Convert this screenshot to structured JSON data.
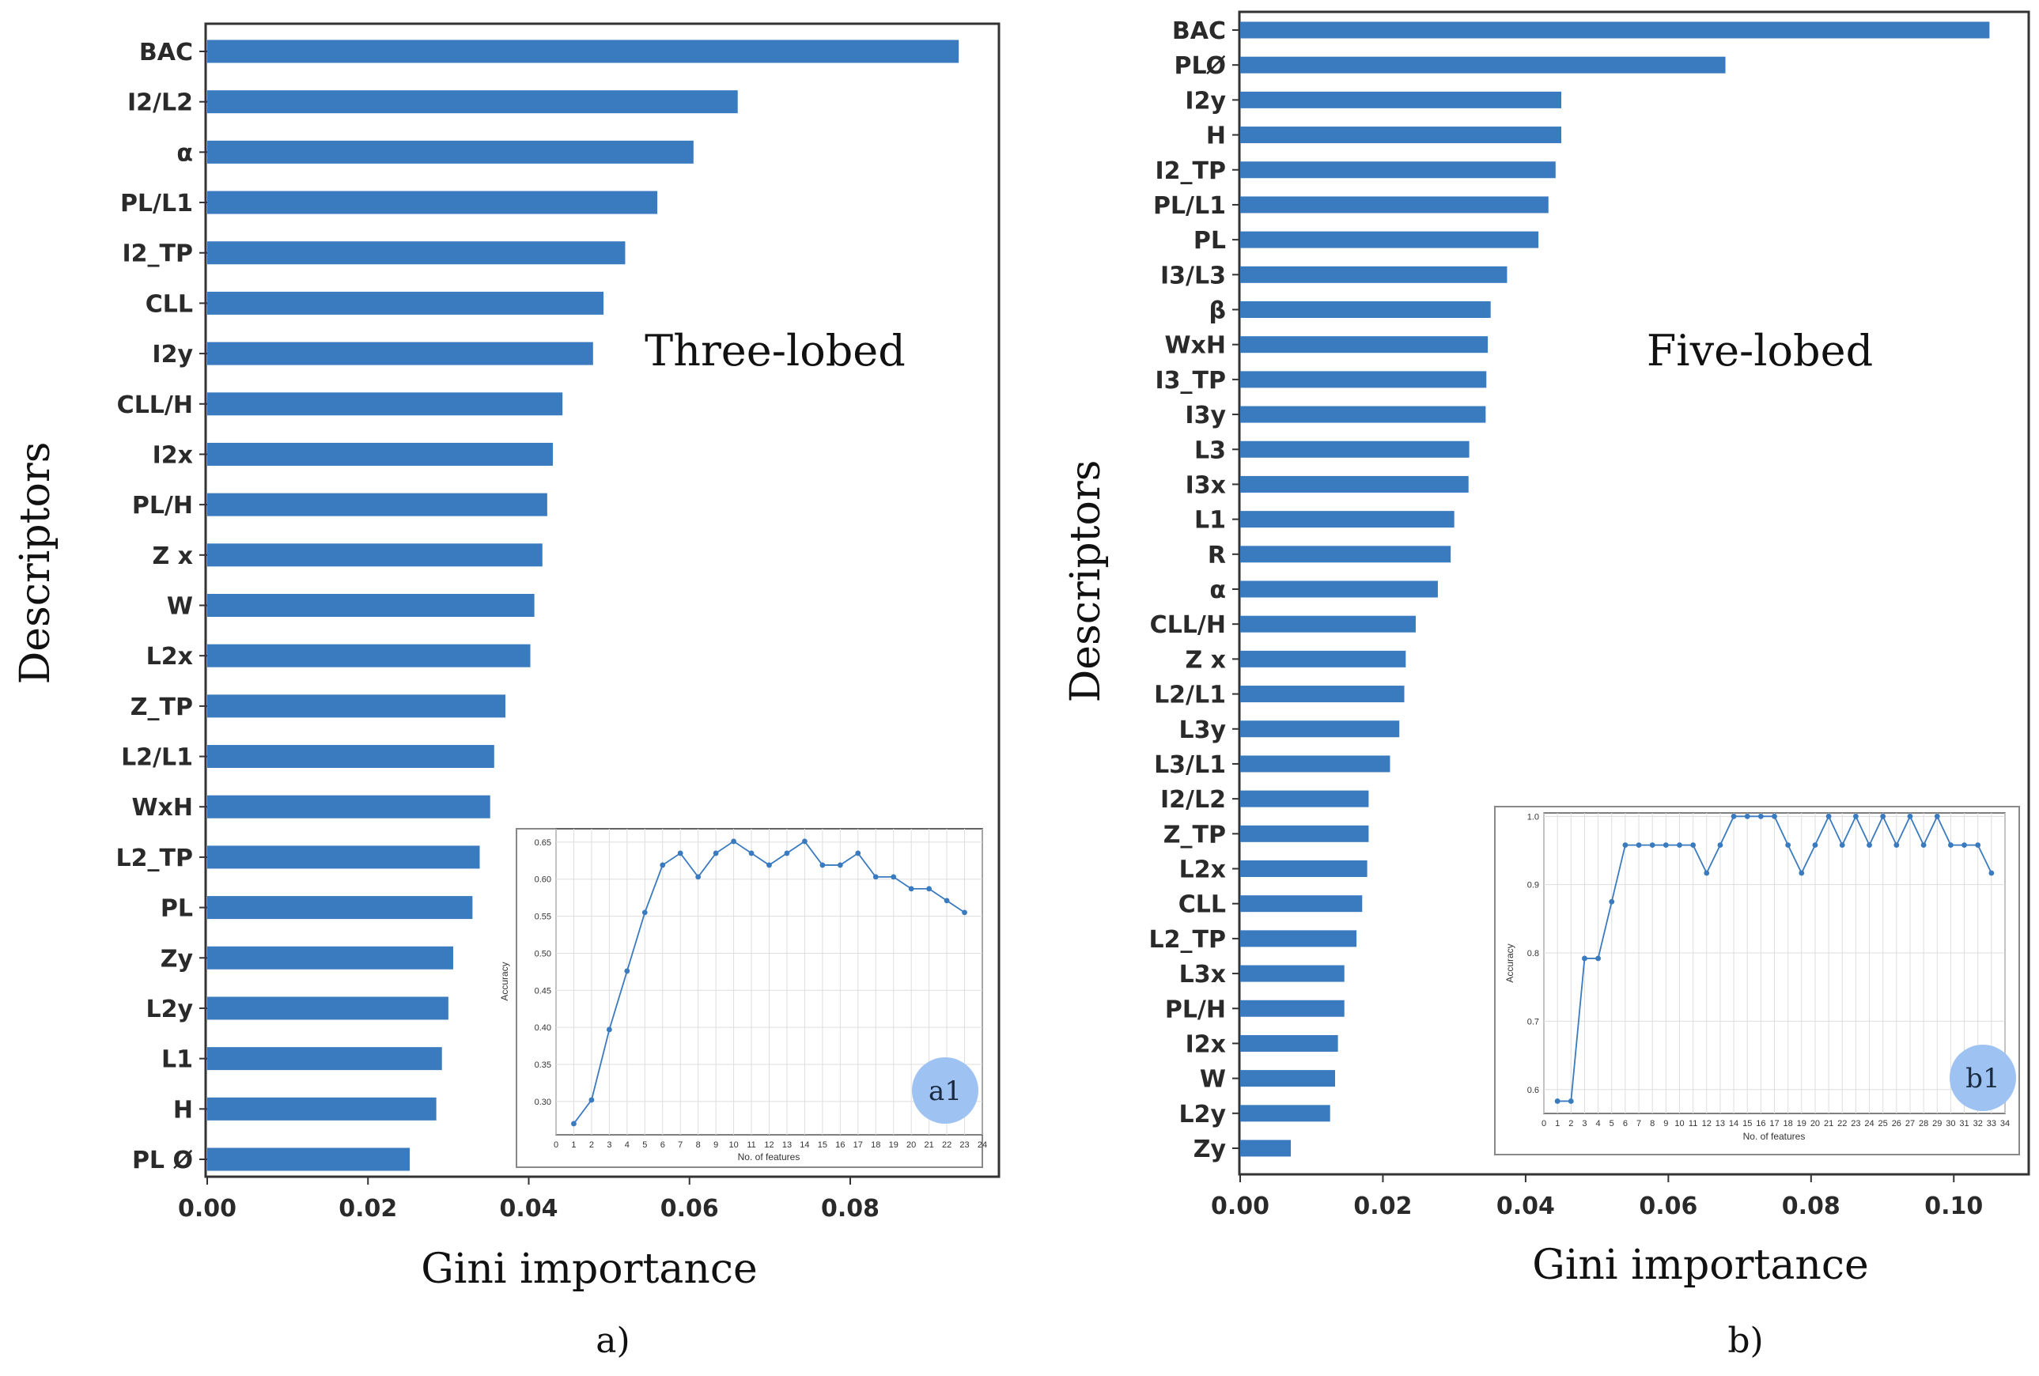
{
  "colors": {
    "bar": "#3a7abf",
    "inset_line": "#3a7abf",
    "badge": "#9ec3f2"
  },
  "chart_data": [
    {
      "type": "bar",
      "orientation": "horizontal",
      "title": "Three-lobed",
      "caption": "a)",
      "xlabel": "Gini importance",
      "ylabel": "Descriptors",
      "xlim": [
        0,
        0.0985
      ],
      "xticks": [
        "0.00",
        "0.02",
        "0.04",
        "0.06",
        "0.08"
      ],
      "categories": [
        "BAC",
        "I2/L2",
        "α",
        "PL/L1",
        "I2_TP",
        "CLL",
        "I2y",
        "CLL/H",
        "I2x",
        "PL/H",
        "Z x",
        "W",
        "L2x",
        "Z_TP",
        "L2/L1",
        "WxH",
        "L2_TP",
        "PL",
        "Zy",
        "L2y",
        "L1",
        "H",
        "PL Ø"
      ],
      "values": [
        0.0935,
        0.066,
        0.0605,
        0.056,
        0.052,
        0.0493,
        0.048,
        0.0442,
        0.043,
        0.0423,
        0.0417,
        0.0407,
        0.0402,
        0.0371,
        0.0357,
        0.0352,
        0.0339,
        0.033,
        0.0306,
        0.03,
        0.0292,
        0.0285,
        0.0252
      ],
      "inset": {
        "type": "line",
        "badge": "a1",
        "xlabel": "No. of features",
        "ylabel": "Accuracy",
        "xlim": [
          0,
          24
        ],
        "ylim": [
          0.255,
          0.668
        ],
        "xticks": [
          "0",
          "1",
          "2",
          "3",
          "4",
          "5",
          "6",
          "7",
          "8",
          "9",
          "10",
          "11",
          "12",
          "13",
          "14",
          "15",
          "16",
          "17",
          "18",
          "19",
          "20",
          "21",
          "22",
          "23",
          "24"
        ],
        "yticks": [
          "0.30",
          "0.35",
          "0.40",
          "0.45",
          "0.50",
          "0.55",
          "0.60",
          "0.65"
        ],
        "x": [
          1,
          2,
          3,
          4,
          5,
          6,
          7,
          8,
          9,
          10,
          11,
          12,
          13,
          14,
          15,
          16,
          17,
          18,
          19,
          20,
          21,
          22,
          23
        ],
        "y": [
          0.27,
          0.302,
          0.397,
          0.476,
          0.555,
          0.619,
          0.635,
          0.603,
          0.635,
          0.651,
          0.635,
          0.619,
          0.635,
          0.651,
          0.619,
          0.619,
          0.635,
          0.603,
          0.603,
          0.587,
          0.587,
          0.571,
          0.555
        ]
      }
    },
    {
      "type": "bar",
      "orientation": "horizontal",
      "title": "Five-lobed",
      "caption": "b)",
      "xlabel": "Gini importance",
      "ylabel": "Descriptors",
      "xlim": [
        0,
        0.1105
      ],
      "xticks": [
        "0.00",
        "0.02",
        "0.04",
        "0.06",
        "0.08",
        "0.10"
      ],
      "categories": [
        "BAC",
        "PLØ",
        "I2y",
        "H",
        "I2_TP",
        "PL/L1",
        "PL",
        "I3/L3",
        "β",
        "WxH",
        "I3_TP",
        "I3y",
        "L3",
        "I3x",
        "L1",
        "R",
        "α",
        "CLL/H",
        "Z x",
        "L2/L1",
        "L3y",
        "L3/L1",
        "I2/L2",
        "Z_TP",
        "L2x",
        "CLL",
        "L2_TP",
        "L3x",
        "PL/H",
        "I2x",
        "W",
        "L2y",
        "Zy"
      ],
      "values": [
        0.105,
        0.068,
        0.045,
        0.045,
        0.0442,
        0.0432,
        0.0418,
        0.0374,
        0.0351,
        0.0347,
        0.0345,
        0.0344,
        0.0321,
        0.032,
        0.03,
        0.0295,
        0.0277,
        0.0246,
        0.0232,
        0.023,
        0.0223,
        0.021,
        0.018,
        0.018,
        0.0178,
        0.0171,
        0.0163,
        0.0146,
        0.0146,
        0.0137,
        0.0133,
        0.0126,
        0.0071
      ],
      "inset": {
        "type": "line",
        "badge": "b1",
        "xlabel": "No. of features",
        "ylabel": "Accuracy",
        "xlim": [
          0,
          34
        ],
        "ylim": [
          0.565,
          1.005
        ],
        "xticks": [
          "0",
          "1",
          "2",
          "3",
          "4",
          "5",
          "6",
          "7",
          "8",
          "9",
          "10",
          "11",
          "12",
          "13",
          "14",
          "15",
          "16",
          "17",
          "18",
          "19",
          "20",
          "21",
          "22",
          "23",
          "24",
          "25",
          "26",
          "27",
          "28",
          "29",
          "30",
          "31",
          "32",
          "33",
          "34"
        ],
        "yticks": [
          "0.6",
          "0.7",
          "0.8",
          "0.9",
          "1.0"
        ],
        "x": [
          1,
          2,
          3,
          4,
          5,
          6,
          7,
          8,
          9,
          10,
          11,
          12,
          13,
          14,
          15,
          16,
          17,
          18,
          19,
          20,
          21,
          22,
          23,
          24,
          25,
          26,
          27,
          28,
          29,
          30,
          31,
          32,
          33
        ],
        "y": [
          0.583,
          0.583,
          0.792,
          0.792,
          0.875,
          0.958,
          0.958,
          0.958,
          0.958,
          0.958,
          0.958,
          0.917,
          0.958,
          1.0,
          1.0,
          1.0,
          1.0,
          0.958,
          0.917,
          0.958,
          1.0,
          0.958,
          1.0,
          0.958,
          1.0,
          0.958,
          1.0,
          0.958,
          1.0,
          0.958,
          0.958,
          0.958,
          0.917
        ]
      }
    }
  ]
}
